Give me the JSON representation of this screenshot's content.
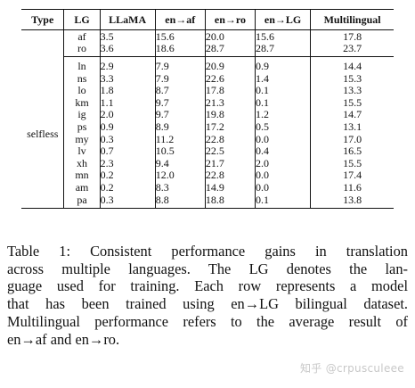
{
  "table": {
    "headers": {
      "type": "Type",
      "lg": "LG",
      "llama": "LLaMA",
      "en_af": "en→af",
      "en_ro": "en→ro",
      "en_lg": "en→LG",
      "multilingual": "Multilingual"
    },
    "group1": [
      {
        "lg": "af",
        "llama": "3.5",
        "en_af": "15.6",
        "en_ro": "20.0",
        "en_lg": "15.6",
        "multi": "17.8"
      },
      {
        "lg": "ro",
        "llama": "3.6",
        "en_af": "18.6",
        "en_ro": "28.7",
        "en_lg": "28.7",
        "multi": "23.7"
      }
    ],
    "group2_type": "selfless",
    "group2": [
      {
        "lg": "ln",
        "llama": "2.9",
        "en_af": "7.9",
        "en_ro": "20.9",
        "en_lg": "0.9",
        "multi": "14.4"
      },
      {
        "lg": "ns",
        "llama": "3.3",
        "en_af": "7.9",
        "en_ro": "22.6",
        "en_lg": "1.4",
        "multi": "15.3"
      },
      {
        "lg": "lo",
        "llama": "1.8",
        "en_af": "8.7",
        "en_ro": "17.8",
        "en_lg": "0.1",
        "multi": "13.3"
      },
      {
        "lg": "km",
        "llama": "1.1",
        "en_af": "9.7",
        "en_ro": "21.3",
        "en_lg": "0.1",
        "multi": "15.5"
      },
      {
        "lg": "ig",
        "llama": "2.0",
        "en_af": "9.7",
        "en_ro": "19.8",
        "en_lg": "1.2",
        "multi": "14.7"
      },
      {
        "lg": "ps",
        "llama": "0.9",
        "en_af": "8.9",
        "en_ro": "17.2",
        "en_lg": "0.5",
        "multi": "13.1"
      },
      {
        "lg": "my",
        "llama": "0.3",
        "en_af": "11.2",
        "en_ro": "22.8",
        "en_lg": "0.0",
        "multi": "17.0"
      },
      {
        "lg": "lv",
        "llama": "0.7",
        "en_af": "10.5",
        "en_ro": "22.5",
        "en_lg": "0.4",
        "multi": "16.5"
      },
      {
        "lg": "xh",
        "llama": "2.3",
        "en_af": "9.4",
        "en_ro": "21.7",
        "en_lg": "2.0",
        "multi": "15.5"
      },
      {
        "lg": "mn",
        "llama": "0.2",
        "en_af": "12.0",
        "en_ro": "22.8",
        "en_lg": "0.0",
        "multi": "17.4"
      },
      {
        "lg": "am",
        "llama": "0.2",
        "en_af": "8.3",
        "en_ro": "14.9",
        "en_lg": "0.0",
        "multi": "11.6"
      },
      {
        "lg": "pa",
        "llama": "0.3",
        "en_af": "8.8",
        "en_ro": "18.8",
        "en_lg": "0.1",
        "multi": "13.8"
      }
    ]
  },
  "caption": {
    "lines": [
      "Table 1: Consistent performance gains in translation",
      "across multiple languages. The LG denotes the lan-",
      "guage used for training. Each row represents a model",
      "that has been trained using en→LG bilingual dataset.",
      "Multilingual performance refers to the average result of",
      "en→af and en→ro."
    ]
  },
  "watermark": "知乎 @crpusculeee"
}
